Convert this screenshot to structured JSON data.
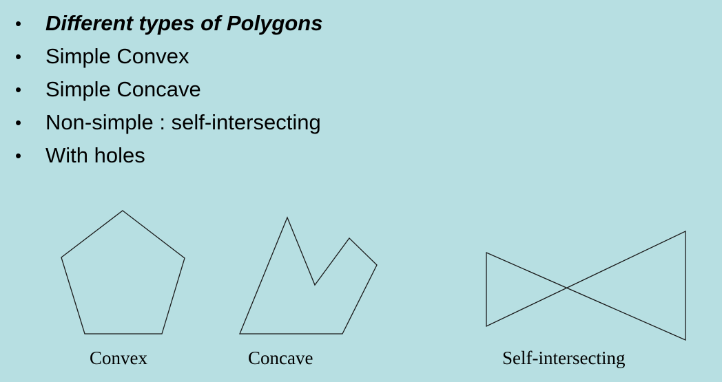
{
  "bullets": [
    {
      "text": "Different types of Polygons",
      "emphasis": true
    },
    {
      "text": "Simple Convex",
      "emphasis": false
    },
    {
      "text": "Simple Concave",
      "emphasis": false
    },
    {
      "text": "Non-simple : self-intersecting",
      "emphasis": false
    },
    {
      "text": "With holes",
      "emphasis": false
    }
  ],
  "bullet_glyph": "•",
  "shapes": [
    {
      "id": "convex",
      "label": "Convex"
    },
    {
      "id": "concave",
      "label": "Concave"
    },
    {
      "id": "self-intersecting",
      "label": "Self-intersecting"
    }
  ],
  "colors": {
    "background": "#b7dfe2",
    "stroke": "#1a1a1a"
  }
}
